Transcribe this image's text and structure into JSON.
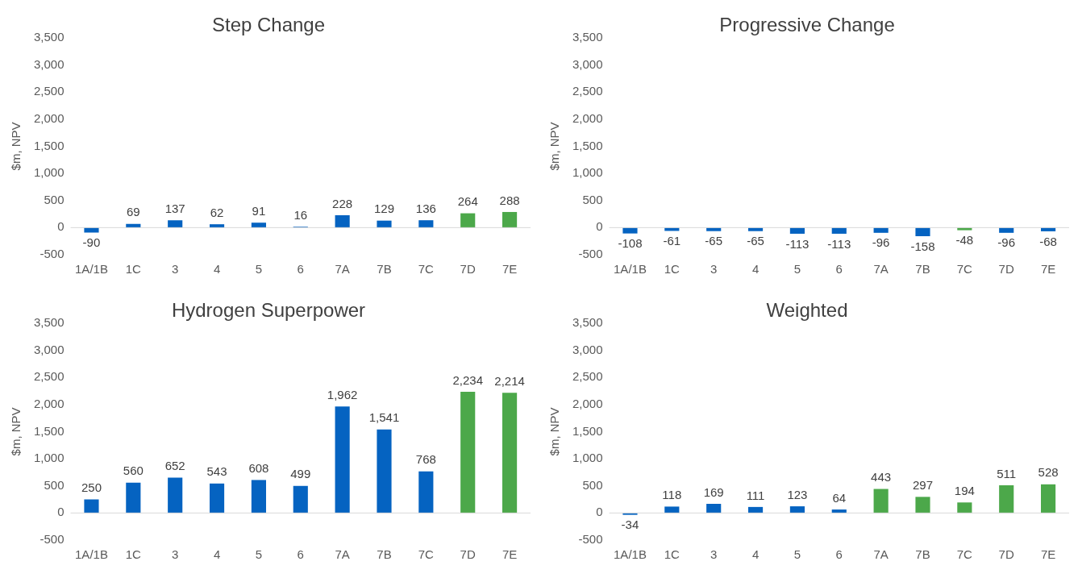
{
  "chart_data": [
    {
      "type": "bar",
      "title": "Step Change",
      "ylabel": "$m, NPV",
      "categories": [
        "1A/1B",
        "1C",
        "3",
        "4",
        "5",
        "6",
        "7A",
        "7B",
        "7C",
        "7D",
        "7E"
      ],
      "values": [
        -90,
        69,
        137,
        62,
        91,
        16,
        228,
        129,
        136,
        264,
        288
      ],
      "colors": [
        "#0563c1",
        "#0563c1",
        "#0563c1",
        "#0563c1",
        "#0563c1",
        "#0563c1",
        "#0563c1",
        "#0563c1",
        "#0563c1",
        "#4ca84a",
        "#4ca84a"
      ],
      "ylim": [
        -500,
        3500
      ],
      "yticks": [
        {
          "value": -500,
          "label": "-500"
        },
        {
          "value": 0,
          "label": "0"
        },
        {
          "value": 500,
          "label": "500"
        },
        {
          "value": 1000,
          "label": "1,000"
        },
        {
          "value": 1500,
          "label": "1,500"
        },
        {
          "value": 2000,
          "label": "2,000"
        },
        {
          "value": 2500,
          "label": "2,500"
        },
        {
          "value": 3000,
          "label": "3,000"
        },
        {
          "value": 3500,
          "label": "3,500"
        }
      ],
      "data_labels": true
    },
    {
      "type": "bar",
      "title": "Progressive Change",
      "ylabel": "$m, NPV",
      "categories": [
        "1A/1B",
        "1C",
        "3",
        "4",
        "5",
        "6",
        "7A",
        "7B",
        "7C",
        "7D",
        "7E"
      ],
      "values": [
        -108,
        -61,
        -65,
        -65,
        -113,
        -113,
        -96,
        -158,
        -48,
        -96,
        -68
      ],
      "colors": [
        "#0563c1",
        "#0563c1",
        "#0563c1",
        "#0563c1",
        "#0563c1",
        "#0563c1",
        "#0563c1",
        "#0563c1",
        "#4ca84a",
        "#0563c1",
        "#0563c1"
      ],
      "ylim": [
        -500,
        3500
      ],
      "yticks": [
        {
          "value": -500,
          "label": "-500"
        },
        {
          "value": 0,
          "label": "0"
        },
        {
          "value": 500,
          "label": "500"
        },
        {
          "value": 1000,
          "label": "1,000"
        },
        {
          "value": 1500,
          "label": "1,500"
        },
        {
          "value": 2000,
          "label": "2,000"
        },
        {
          "value": 2500,
          "label": "2,500"
        },
        {
          "value": 3000,
          "label": "3,000"
        },
        {
          "value": 3500,
          "label": "3,500"
        }
      ],
      "data_labels": true
    },
    {
      "type": "bar",
      "title": "Hydrogen Superpower",
      "ylabel": "$m, NPV",
      "categories": [
        "1A/1B",
        "1C",
        "3",
        "4",
        "5",
        "6",
        "7A",
        "7B",
        "7C",
        "7D",
        "7E"
      ],
      "values": [
        250,
        560,
        652,
        543,
        608,
        499,
        1962,
        1541,
        768,
        2234,
        2214
      ],
      "value_labels": [
        "250",
        "560",
        "652",
        "543",
        "608",
        "499",
        "1,962",
        "1,541",
        "768",
        "2,234",
        "2,214"
      ],
      "colors": [
        "#0563c1",
        "#0563c1",
        "#0563c1",
        "#0563c1",
        "#0563c1",
        "#0563c1",
        "#0563c1",
        "#0563c1",
        "#0563c1",
        "#4ca84a",
        "#4ca84a"
      ],
      "ylim": [
        -500,
        3500
      ],
      "yticks": [
        {
          "value": -500,
          "label": "-500"
        },
        {
          "value": 0,
          "label": "0"
        },
        {
          "value": 500,
          "label": "500"
        },
        {
          "value": 1000,
          "label": "1,000"
        },
        {
          "value": 1500,
          "label": "1,500"
        },
        {
          "value": 2000,
          "label": "2,000"
        },
        {
          "value": 2500,
          "label": "2,500"
        },
        {
          "value": 3000,
          "label": "3,000"
        },
        {
          "value": 3500,
          "label": "3,500"
        }
      ]
    },
    {
      "type": "bar",
      "title": "Weighted",
      "ylabel": "$m, NPV",
      "categories": [
        "1A/1B",
        "1C",
        "3",
        "4",
        "5",
        "6",
        "7A",
        "7B",
        "7C",
        "7D",
        "7E"
      ],
      "values": [
        -34,
        118,
        169,
        111,
        123,
        64,
        443,
        297,
        194,
        511,
        528
      ],
      "colors": [
        "#0563c1",
        "#0563c1",
        "#0563c1",
        "#0563c1",
        "#0563c1",
        "#0563c1",
        "#4ca84a",
        "#4ca84a",
        "#4ca84a",
        "#4ca84a",
        "#4ca84a"
      ],
      "ylim": [
        -500,
        3500
      ],
      "yticks": [
        {
          "value": -500,
          "label": "-500"
        },
        {
          "value": 0,
          "label": "0"
        },
        {
          "value": 500,
          "label": "500"
        },
        {
          "value": 1000,
          "label": "1,000"
        },
        {
          "value": 1500,
          "label": "1,500"
        },
        {
          "value": 2000,
          "label": "2,000"
        },
        {
          "value": 2500,
          "label": "2,500"
        },
        {
          "value": 3000,
          "label": "3,000"
        },
        {
          "value": 3500,
          "label": "3,500"
        }
      ],
      "data_labels": true
    }
  ]
}
